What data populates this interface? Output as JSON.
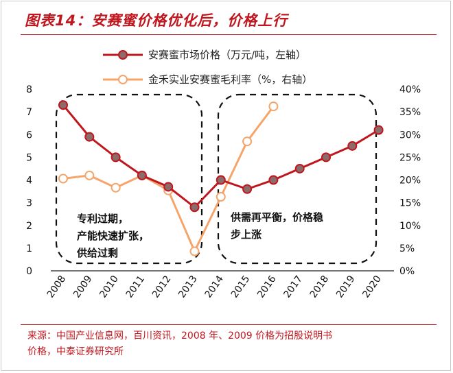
{
  "title": "图表14：安赛蜜价格优化后，价格上行",
  "source": {
    "line1": "来源：中国产业信息网，百川资讯，2008 年、2009 价格为招股说明书",
    "line2": "价格，中泰证券研究所"
  },
  "annotations": {
    "left": [
      "专利过期，",
      "产能快速扩张，",
      "供给过剩"
    ],
    "right": [
      "供需再平衡，价格稳",
      "步上涨"
    ]
  },
  "colors": {
    "price": "#c0171e",
    "margin": "#f5a46a",
    "title": "#c0171e"
  },
  "chart_data": {
    "type": "line",
    "x": [
      "2008",
      "2009",
      "2010",
      "2011",
      "2012",
      "2013",
      "2014",
      "2015",
      "2016",
      "2017",
      "2018",
      "2019",
      "2020"
    ],
    "series": [
      {
        "name": "安赛蜜市场价格（万元/吨，左轴）",
        "axis": "left",
        "values": [
          7.3,
          5.9,
          5.0,
          4.2,
          3.7,
          2.8,
          4.0,
          3.6,
          4.0,
          4.5,
          5.0,
          5.5,
          6.2
        ]
      },
      {
        "name": "金禾实业安赛蜜毛利率（%，右轴）",
        "axis": "right",
        "values": [
          20.3,
          21.0,
          18.3,
          21.0,
          17.7,
          4.3,
          16.3,
          28.5,
          36.2,
          null,
          null,
          null,
          null
        ]
      }
    ],
    "y_left": {
      "min": 0,
      "max": 8,
      "ticks": [
        "0",
        "1",
        "2",
        "3",
        "4",
        "5",
        "6",
        "7",
        "8"
      ]
    },
    "y_right": {
      "min": 0,
      "max": 40,
      "ticks": [
        "0%",
        "5%",
        "10%",
        "15%",
        "20%",
        "25%",
        "30%",
        "35%",
        "40%"
      ]
    },
    "legend_position": "top"
  }
}
